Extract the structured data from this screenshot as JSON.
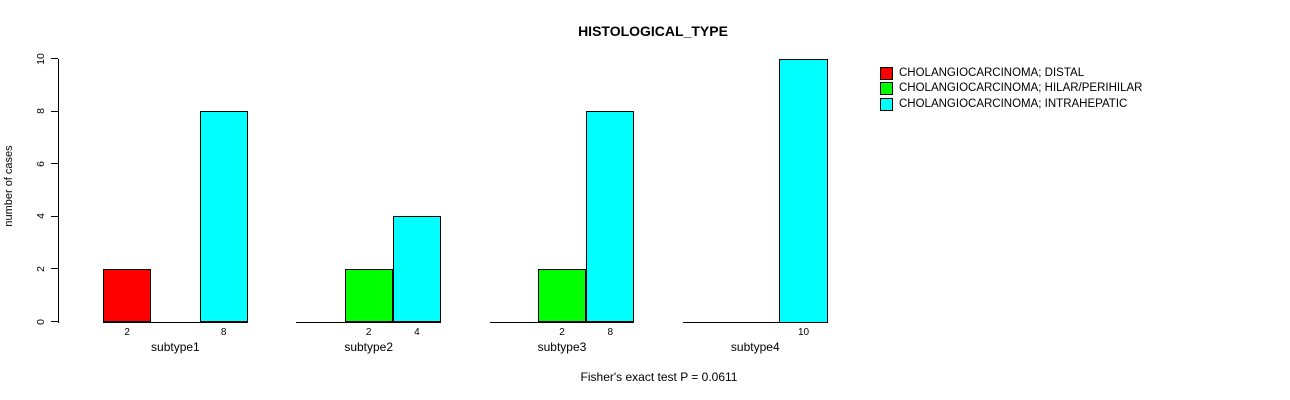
{
  "chart_data": {
    "type": "bar",
    "variant": "grouped",
    "title": "HISTOLOGICAL_TYPE",
    "xlabel": "",
    "ylabel": "number of cases",
    "categories": [
      "subtype1",
      "subtype2",
      "subtype3",
      "subtype4"
    ],
    "series": [
      {
        "name": "CHOLANGIOCARCINOMA; DISTAL",
        "color": "#ff0000",
        "values": [
          2,
          0,
          0,
          0
        ]
      },
      {
        "name": "CHOLANGIOCARCINOMA; HILAR/PERIHILAR",
        "color": "#00ff00",
        "values": [
          0,
          2,
          2,
          0
        ]
      },
      {
        "name": "CHOLANGIOCARCINOMA; INTRAHEPATIC",
        "color": "#00ffff",
        "values": [
          8,
          4,
          8,
          10
        ]
      }
    ],
    "bar_value_labels": [
      [
        "2",
        "",
        "8"
      ],
      [
        "",
        "2",
        "4"
      ],
      [
        "",
        "2",
        "8"
      ],
      [
        "",
        "",
        "10"
      ]
    ],
    "ylim": [
      0,
      10
    ],
    "yticks": [
      0,
      2,
      4,
      6,
      8,
      10
    ],
    "grid": false,
    "legend_position": "right",
    "annotation": "Fisher's exact test P = 0.0611",
    "axis_color": "#000000",
    "background_color": "#ffffff"
  }
}
